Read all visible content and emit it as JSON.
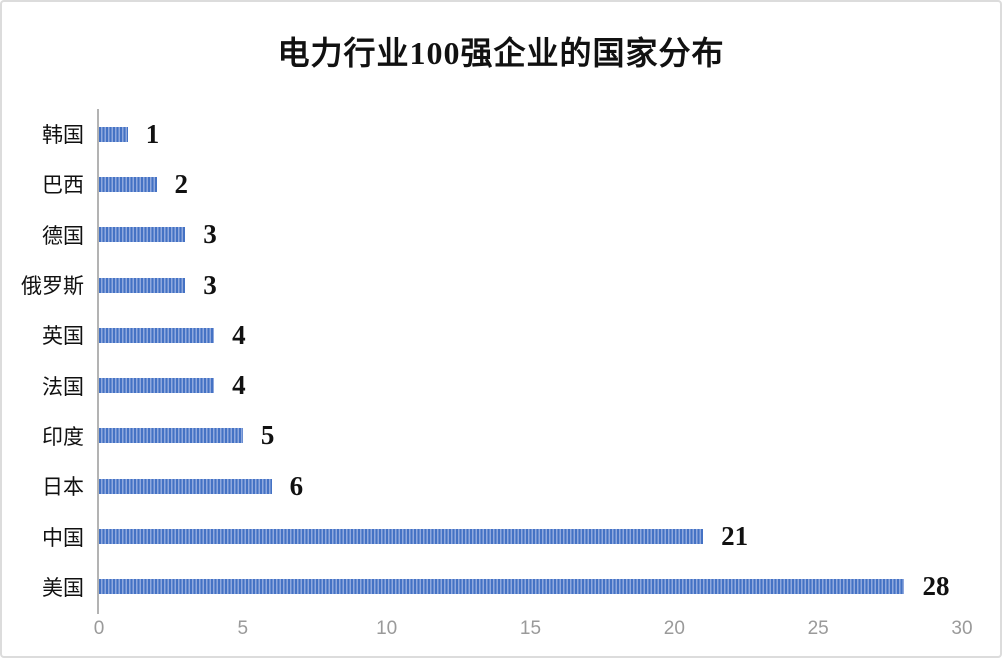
{
  "page": {
    "background": "#ffffff",
    "border_color": "#dcdcdc"
  },
  "chart_data": {
    "type": "bar",
    "orientation": "horizontal",
    "title": "电力行业100强企业的国家分布",
    "categories": [
      "韩国",
      "巴西",
      "德国",
      "俄罗斯",
      "英国",
      "法国",
      "印度",
      "日本",
      "中国",
      "美国"
    ],
    "values": [
      1,
      2,
      3,
      3,
      4,
      4,
      5,
      6,
      21,
      28
    ],
    "data_labels_shown": true,
    "xlabel": "",
    "ylabel": "",
    "xlim": [
      0,
      30
    ],
    "x_ticks": [
      0,
      5,
      10,
      15,
      20,
      25,
      30
    ],
    "grid": false,
    "legend_shown": false,
    "bar_fill_style": "vertical-stripes",
    "bar_color_dark": "#4472c4",
    "bar_color_light": "#90a9de",
    "axis_line_color": "#b3b3b3",
    "tick_label_color": "#9a9a9a",
    "text_color": "#111111"
  }
}
